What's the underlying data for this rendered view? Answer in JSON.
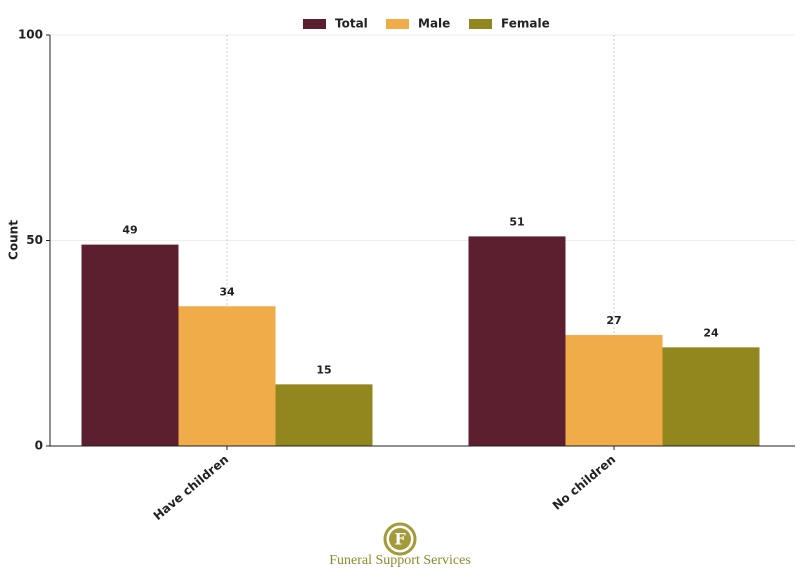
{
  "chart_data": {
    "type": "bar",
    "y_label": "Count",
    "categories": [
      "Have children",
      "No children"
    ],
    "series": [
      {
        "name": "Total",
        "color": "#5c1f30",
        "values": [
          49,
          51
        ]
      },
      {
        "name": "Male",
        "color": "#f0ac48",
        "values": [
          34,
          27
        ]
      },
      {
        "name": "Female",
        "color": "#92871e",
        "values": [
          15,
          24
        ]
      }
    ],
    "ylim": [
      0,
      100
    ],
    "yticks": [
      0,
      50,
      100
    ],
    "grid": true,
    "legend": "top"
  },
  "logo": {
    "letter": "F",
    "text": "Funeral Support Services"
  }
}
